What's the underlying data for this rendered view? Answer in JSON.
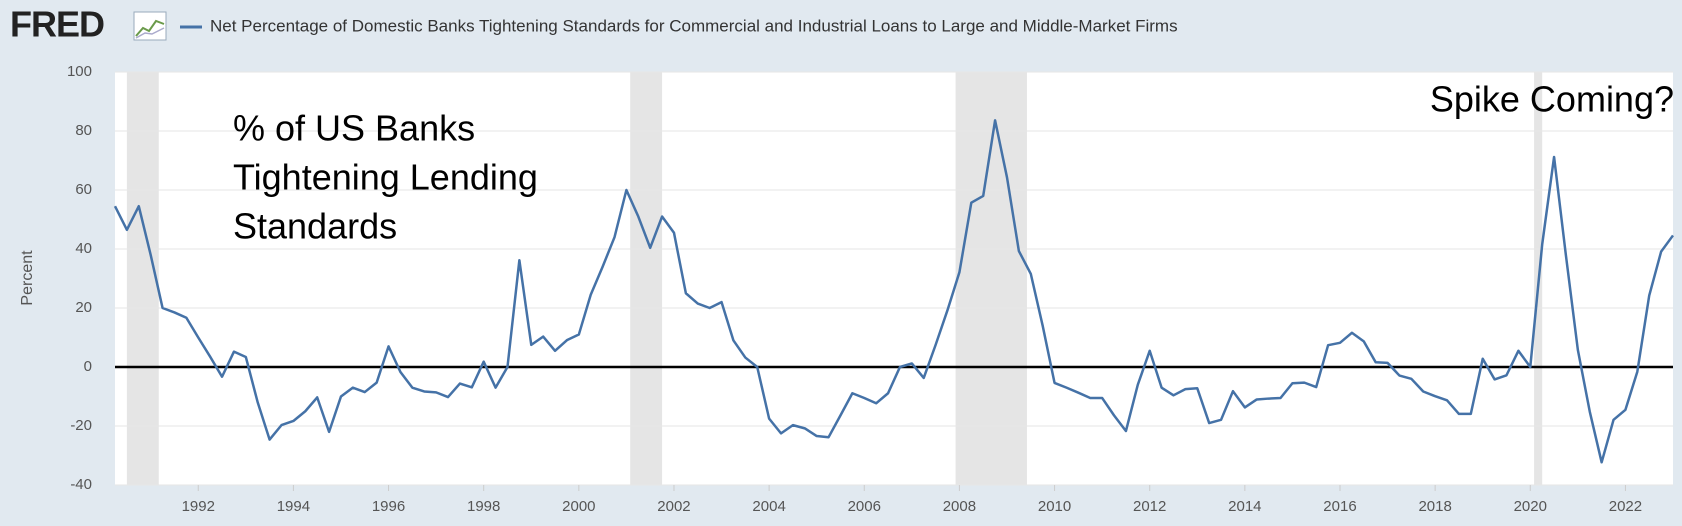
{
  "logo": "FRED",
  "chart_data": {
    "type": "line",
    "title": "Net Percentage of Domestic Banks Tightening Standards for Commercial and Industrial Loans to Large and Middle-Market Firms",
    "y_label": "Percent",
    "annotation_lines": [
      "% of US Banks",
      "Tightening Lending",
      "Standards"
    ],
    "annotation_right": "Spike Coming?",
    "x": [
      1990.25,
      1990.5,
      1990.75,
      1991,
      1991.25,
      1991.5,
      1991.75,
      1992,
      1992.25,
      1992.5,
      1992.75,
      1993,
      1993.25,
      1993.5,
      1993.75,
      1994,
      1994.25,
      1994.5,
      1994.75,
      1995,
      1995.25,
      1995.5,
      1995.75,
      1996,
      1996.25,
      1996.5,
      1996.75,
      1997,
      1997.25,
      1997.5,
      1997.75,
      1998,
      1998.25,
      1998.5,
      1998.75,
      1999,
      1999.25,
      1999.5,
      1999.75,
      2000,
      2000.25,
      2000.5,
      2000.75,
      2001,
      2001.25,
      2001.5,
      2001.75,
      2002,
      2002.25,
      2002.5,
      2002.75,
      2003,
      2003.25,
      2003.5,
      2003.75,
      2004,
      2004.25,
      2004.5,
      2004.75,
      2005,
      2005.25,
      2005.5,
      2005.75,
      2006,
      2006.25,
      2006.5,
      2006.75,
      2007,
      2007.25,
      2007.5,
      2007.75,
      2008,
      2008.25,
      2008.5,
      2008.75,
      2009,
      2009.25,
      2009.5,
      2009.75,
      2010,
      2010.25,
      2010.5,
      2010.75,
      2011,
      2011.25,
      2011.5,
      2011.75,
      2012,
      2012.25,
      2012.5,
      2012.75,
      2013,
      2013.25,
      2013.5,
      2013.75,
      2014,
      2014.25,
      2014.5,
      2014.75,
      2015,
      2015.25,
      2015.5,
      2015.75,
      2016,
      2016.25,
      2016.5,
      2016.75,
      2017,
      2017.25,
      2017.5,
      2017.75,
      2018,
      2018.25,
      2018.5,
      2018.75,
      2019,
      2019.25,
      2019.5,
      2019.75,
      2020,
      2020.25,
      2020.5,
      2020.75,
      2021,
      2021.25,
      2021.5,
      2021.75,
      2022,
      2022.25,
      2022.5,
      2022.75,
      2023
    ],
    "series": [
      {
        "name": "Net Percentage of Domestic Banks Tightening Standards for Commercial and Industrial Loans to Large and Middle-Market Firms",
        "color": "#4572a7",
        "values": [
          54.5,
          46.5,
          54.5,
          38,
          20,
          18.5,
          16.7,
          10,
          3.5,
          -3.3,
          5.2,
          3.4,
          -12,
          -24.6,
          -19.7,
          -18.3,
          -15,
          -10.3,
          -22,
          -10,
          -7,
          -8.5,
          -5.3,
          7,
          -1.7,
          -7,
          -8.3,
          -8.6,
          -10.2,
          -5.6,
          -6.9,
          1.8,
          -7,
          0,
          36.2,
          7.5,
          10.3,
          5.5,
          9.1,
          11,
          24.5,
          34,
          44,
          60,
          51,
          40.4,
          51,
          45.5,
          25,
          21.5,
          20,
          22,
          9,
          3.2,
          0,
          -17.5,
          -22.5,
          -19.7,
          -20.8,
          -23.4,
          -23.8,
          -16.4,
          -8.9,
          -10.5,
          -12.3,
          -8.9,
          0,
          1.2,
          -3.7,
          7.5,
          19.3,
          32.1,
          55.7,
          58,
          83.6,
          64.3,
          39.3,
          31.6,
          14,
          -5.4,
          -7,
          -8.7,
          -10.5,
          -10.5,
          -16.4,
          -21.7,
          -6,
          5.5,
          -7,
          -9.6,
          -7.5,
          -7.2,
          -19,
          -17.9,
          -8.2,
          -13.7,
          -11,
          -10.7,
          -10.5,
          -5.5,
          -5.3,
          -6.8,
          7.4,
          8.2,
          11.6,
          8.7,
          1.6,
          1.4,
          -2.9,
          -4,
          -8.3,
          -9.9,
          -11.3,
          -15.9,
          -15.9,
          2.8,
          -4.2,
          -2.8,
          5.5,
          0,
          41.5,
          71.2,
          37.7,
          5.8,
          -15.1,
          -32.3,
          -17.9,
          -14.5,
          -1.6,
          24.2,
          39.1,
          44.6
        ]
      }
    ],
    "recessions": [
      [
        1990.5,
        1991.17
      ],
      [
        2001.08,
        2001.75
      ],
      [
        2007.92,
        2009.42
      ],
      [
        2020.08,
        2020.25
      ]
    ],
    "xlim": [
      1990.25,
      2023
    ],
    "xticks": [
      1992,
      1994,
      1996,
      1998,
      2000,
      2002,
      2004,
      2006,
      2008,
      2010,
      2012,
      2014,
      2016,
      2018,
      2020,
      2022
    ],
    "ylim": [
      -40,
      100
    ],
    "yticks": [
      -40,
      -20,
      0,
      20,
      40,
      60,
      80,
      100
    ],
    "grid": true,
    "hline": 0
  }
}
